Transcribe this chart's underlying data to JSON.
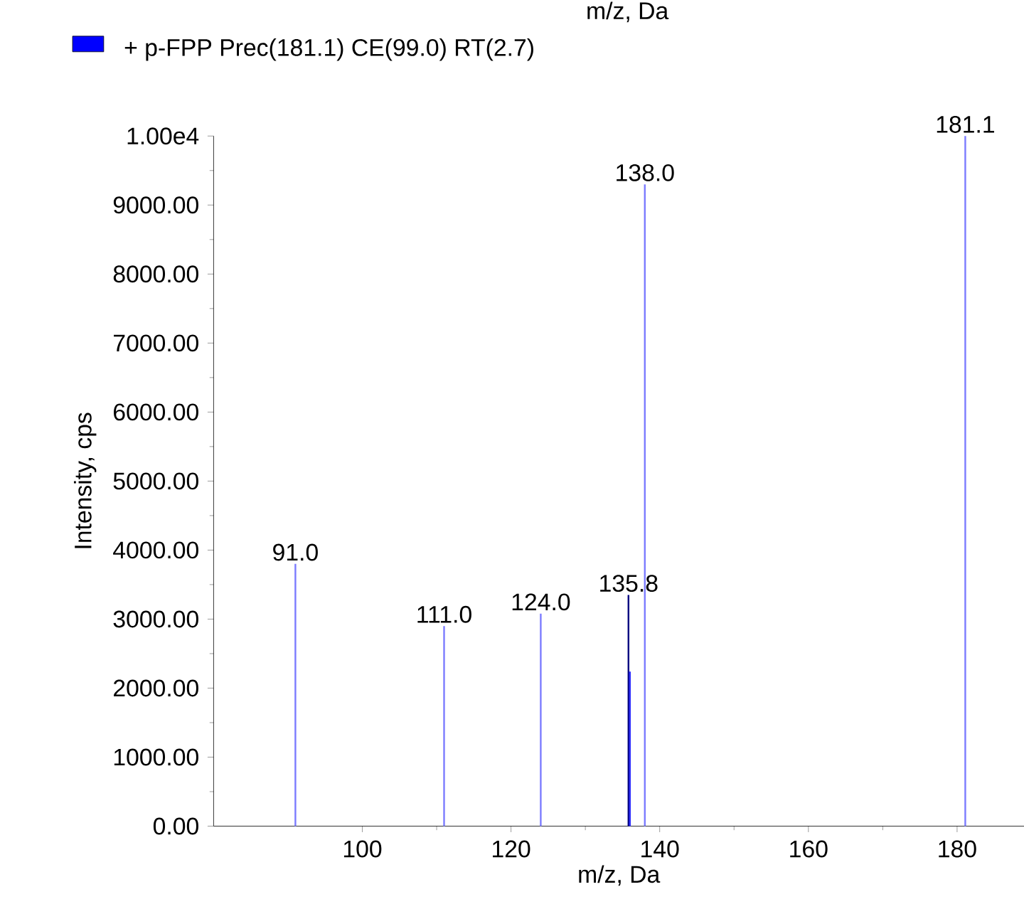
{
  "chart_data": {
    "type": "bar",
    "xlabel": "m/z, Da",
    "ylabel": "Intensity, cps",
    "series": [
      {
        "name": "+ p-FPP Prec(181.1) CE(99.0) RT(2.7)",
        "color": "#0000ff",
        "x": [
          91.0,
          111.0,
          124.0,
          135.8,
          136.0,
          138.0,
          181.1
        ],
        "values": [
          3800,
          2900,
          3080,
          3350,
          2240,
          9300,
          10000
        ],
        "colors": [
          "#7b7bff",
          "#7b7bff",
          "#7b7bff",
          "#000080",
          "#3030ff",
          "#7b7bff",
          "#7b7bff"
        ]
      }
    ],
    "xlim": [
      80,
      189
    ],
    "xticks": [
      100,
      120,
      140,
      160,
      180
    ],
    "ylim": [
      0,
      10000
    ],
    "yticks": [
      {
        "value": 0,
        "label": "0.00"
      },
      {
        "value": 1000,
        "label": "1000.00"
      },
      {
        "value": 2000,
        "label": "2000.00"
      },
      {
        "value": 3000,
        "label": "3000.00"
      },
      {
        "value": 4000,
        "label": "4000.00"
      },
      {
        "value": 5000,
        "label": "5000.00"
      },
      {
        "value": 6000,
        "label": "6000.00"
      },
      {
        "value": 7000,
        "label": "7000.00"
      },
      {
        "value": 8000,
        "label": "8000.00"
      },
      {
        "value": 9000,
        "label": "9000.00"
      },
      {
        "value": 10000,
        "label": "1.00e4"
      }
    ],
    "legend": "top left",
    "grid": false,
    "annotations": [
      "m/z, Da",
      {
        "text": "91.0",
        "x": 91.0,
        "y": 3800
      },
      {
        "text": "111.0",
        "x": 111.0,
        "y": 2900
      },
      {
        "text": "124.0",
        "x": 124.0,
        "y": 3080
      },
      {
        "text": "135.8",
        "x": 135.8,
        "y": 3350
      },
      {
        "text": "138.0",
        "x": 138.0,
        "y": 9300
      },
      {
        "text": "181.1",
        "x": 181.1,
        "y": 10000
      }
    ]
  }
}
